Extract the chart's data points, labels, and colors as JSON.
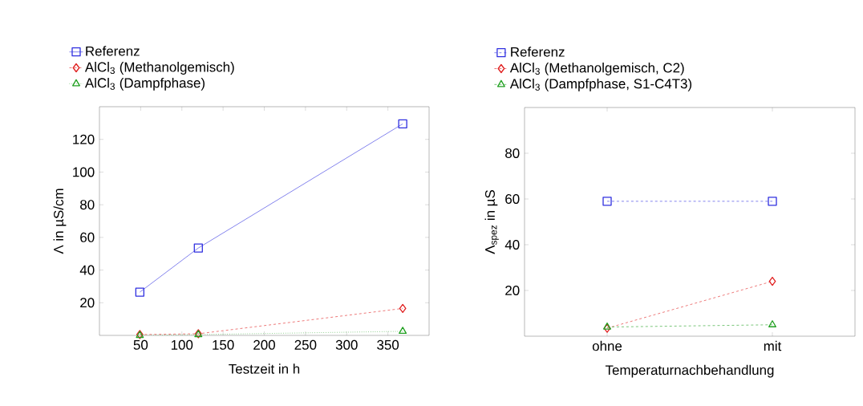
{
  "chart_data": [
    {
      "type": "line",
      "xlabel": "Testzeit in h",
      "ylabel": "Λ in µS/cm",
      "x": [
        49,
        120,
        368
      ],
      "xlim": [
        0,
        400
      ],
      "xticks": [
        50,
        100,
        150,
        200,
        250,
        300,
        350
      ],
      "ylim": [
        0,
        140
      ],
      "yticks": [
        20,
        40,
        60,
        80,
        100,
        120
      ],
      "legend": "top left",
      "series": [
        {
          "name": "Referenz",
          "color": "#3030e0",
          "values": [
            26.5,
            53.5,
            129.5
          ],
          "marker": "square",
          "line_style": "solid"
        },
        {
          "name": "AlCl$_{3}$ (Methanolgemisch)",
          "color": "#e02020",
          "values": [
            0.5,
            1,
            16.5
          ],
          "marker": "diamond",
          "line_style": "dashed"
        },
        {
          "name": "AlCl$_{3}$ (Dampfphase)",
          "color": "#20a020",
          "values": [
            0,
            0.5,
            2.5
          ],
          "marker": "triangle",
          "line_style": "dotted"
        }
      ]
    },
    {
      "type": "line",
      "xlabel": "Temperaturnachbehandlung",
      "ylabel": "Λ$_{spez}$ in µS",
      "categories": [
        "ohne",
        "mit"
      ],
      "ylim": [
        0,
        100
      ],
      "yticks": [
        20,
        40,
        60,
        80
      ],
      "legend": "top left",
      "series": [
        {
          "name": "Referenz",
          "color": "#3030e0",
          "values": [
            59,
            59
          ],
          "marker": "square",
          "line_style": "dashed"
        },
        {
          "name": "AlCl$_{3}$ (Methanolgemisch, C2)",
          "color": "#e02020",
          "values": [
            3.5,
            24
          ],
          "marker": "diamond",
          "line_style": "dashed"
        },
        {
          "name": "AlCl$_{3}$ (Dampfphase, S1-C4T3)",
          "color": "#20a020",
          "values": [
            4,
            5
          ],
          "marker": "triangle",
          "line_style": "dashed"
        }
      ]
    }
  ]
}
